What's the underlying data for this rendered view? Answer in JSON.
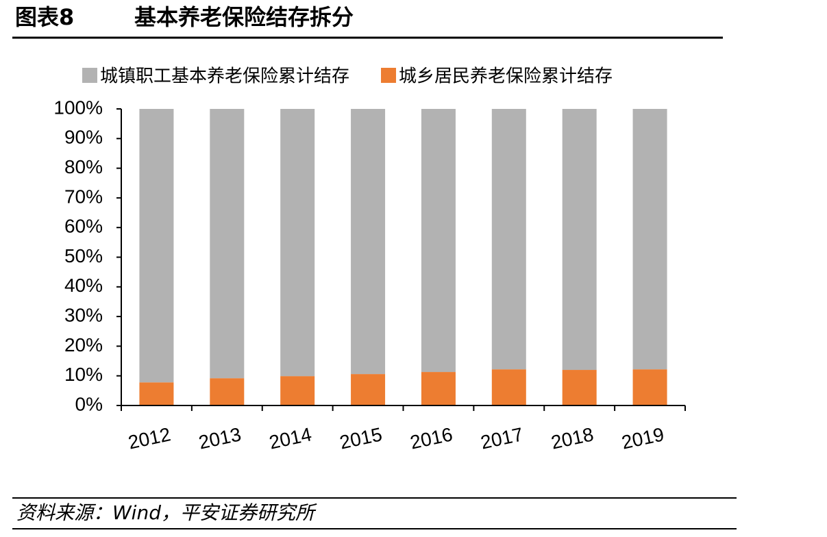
{
  "chart_data": {
    "type": "stacked_bar",
    "figure_label": "图表8",
    "title": "基本养老保险结存拆分",
    "source": "资料来源：Wind，平安证券研究所",
    "categories": [
      "2012",
      "2013",
      "2014",
      "2015",
      "2016",
      "2017",
      "2018",
      "2019"
    ],
    "series": [
      {
        "name": "城镇职工基本养老保险累计结存",
        "color": "#b2b2b2",
        "values": [
          92.2,
          90.8,
          90.1,
          89.4,
          88.7,
          87.8,
          88.0,
          87.8
        ]
      },
      {
        "name": "城乡居民养老保险累计结存",
        "color": "#ed7d31",
        "values": [
          7.8,
          9.2,
          9.9,
          10.6,
          11.3,
          12.2,
          12.0,
          12.2
        ]
      }
    ],
    "ylim": [
      0,
      100
    ],
    "yticks": [
      {
        "value": 0,
        "label": "0%"
      },
      {
        "value": 10,
        "label": "10%"
      },
      {
        "value": 20,
        "label": "20%"
      },
      {
        "value": 30,
        "label": "30%"
      },
      {
        "value": 40,
        "label": "40%"
      },
      {
        "value": 50,
        "label": "50%"
      },
      {
        "value": 60,
        "label": "60%"
      },
      {
        "value": 70,
        "label": "70%"
      },
      {
        "value": 80,
        "label": "80%"
      },
      {
        "value": 90,
        "label": "90%"
      },
      {
        "value": 100,
        "label": "100%"
      }
    ],
    "grid": false
  }
}
